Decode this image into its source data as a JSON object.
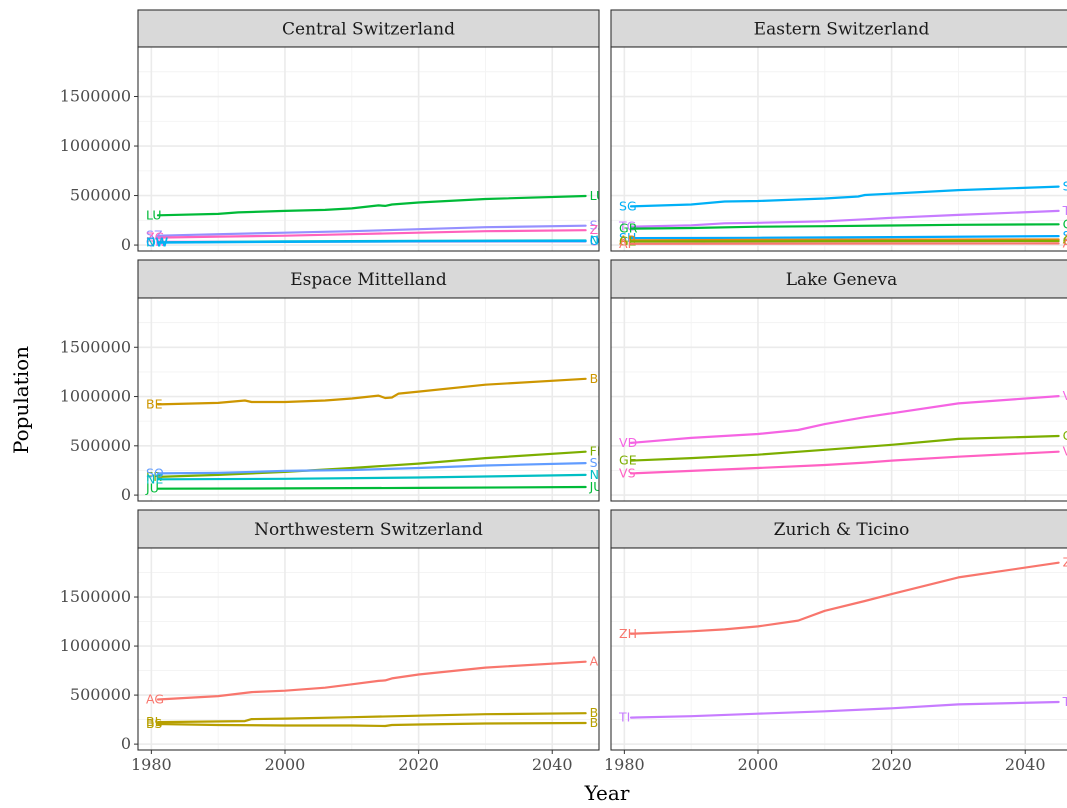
{
  "chart_data": {
    "type": "line",
    "xlabel": "Year",
    "ylabel": "Population",
    "xlim": [
      1978,
      2047
    ],
    "ylim": [
      -60000,
      2000000
    ],
    "x_ticks": [
      1980,
      2000,
      2020,
      2040
    ],
    "y_ticks": [
      0,
      500000,
      1000000,
      1500000
    ],
    "y_tick_labels": [
      "0",
      "500000",
      "1000000",
      "1500000"
    ],
    "grid": true,
    "layout": "facet grid 2 columns x 3 rows",
    "panels": [
      {
        "title": "Central Switzerland",
        "series": [
          {
            "name": "LU",
            "color": "#00BA38",
            "x": [
              1981,
              1990,
              1993,
              2000,
              2006,
              2010,
              2014,
              2015,
              2016,
              2020,
              2030,
              2045
            ],
            "values": [
              300000,
              315000,
              330000,
              345000,
              355000,
              370000,
              400000,
              395000,
              410000,
              430000,
              465000,
              495000
            ]
          },
          {
            "name": "SZ",
            "color": "#9590FF",
            "x": [
              1981,
              1990,
              2000,
              2010,
              2020,
              2030,
              2045
            ],
            "values": [
              95000,
              110000,
              125000,
              140000,
              160000,
              180000,
              195000
            ]
          },
          {
            "name": "ZG",
            "color": "#FF62BC",
            "x": [
              1981,
              1990,
              2000,
              2010,
              2020,
              2030,
              2045
            ],
            "values": [
              75000,
              85000,
              95000,
              110000,
              125000,
              140000,
              150000
            ]
          },
          {
            "name": "UR",
            "color": "#F763E0",
            "x": [
              1981,
              2000,
              2020,
              2045
            ],
            "values": [
              33000,
              34000,
              36000,
              37000
            ]
          },
          {
            "name": "NW",
            "color": "#00BFC4",
            "x": [
              1981,
              2000,
              2020,
              2045
            ],
            "values": [
              28000,
              37000,
              43000,
              46000
            ]
          },
          {
            "name": "OW",
            "color": "#00B0F6",
            "x": [
              1981,
              2000,
              2020,
              2045
            ],
            "values": [
              25000,
              32000,
              38000,
              40000
            ]
          }
        ]
      },
      {
        "title": "Eastern Switzerland",
        "series": [
          {
            "name": "SG",
            "color": "#00B0F6",
            "x": [
              1981,
              1990,
              1995,
              2000,
              2006,
              2010,
              2015,
              2016,
              2020,
              2030,
              2045
            ],
            "values": [
              390000,
              410000,
              440000,
              445000,
              460000,
              470000,
              490000,
              505000,
              520000,
              555000,
              590000
            ]
          },
          {
            "name": "TG",
            "color": "#C77CFF",
            "x": [
              1981,
              1990,
              1995,
              2000,
              2010,
              2016,
              2020,
              2030,
              2045
            ],
            "values": [
              185000,
              200000,
              220000,
              225000,
              240000,
              260000,
              275000,
              305000,
              345000
            ]
          },
          {
            "name": "GR",
            "color": "#00BA38",
            "x": [
              1981,
              1990,
              2000,
              2010,
              2020,
              2030,
              2045
            ],
            "values": [
              165000,
              172000,
              185000,
              190000,
              198000,
              205000,
              210000
            ]
          },
          {
            "name": "SH",
            "color": "#00A9FF",
            "x": [
              1981,
              2000,
              2020,
              2045
            ],
            "values": [
              70000,
              73000,
              80000,
              90000
            ]
          },
          {
            "name": "AR",
            "color": "#E68613",
            "x": [
              1981,
              2000,
              2020,
              2045
            ],
            "values": [
              47000,
              53000,
              55000,
              56000
            ]
          },
          {
            "name": "GL",
            "color": "#7CAE00",
            "x": [
              1981,
              2000,
              2020,
              2045
            ],
            "values": [
              36000,
              38000,
              40000,
              41000
            ]
          },
          {
            "name": "AI",
            "color": "#F8766D",
            "x": [
              1981,
              2000,
              2020,
              2045
            ],
            "values": [
              13000,
              15000,
              16000,
              17000
            ]
          }
        ]
      },
      {
        "title": "Espace Mittelland",
        "series": [
          {
            "name": "BE",
            "color": "#CD9600",
            "x": [
              1981,
              1990,
              1994,
              1995,
              2000,
              2006,
              2010,
              2014,
              2015,
              2016,
              2017,
              2020,
              2030,
              2045
            ],
            "values": [
              920000,
              935000,
              960000,
              945000,
              945000,
              960000,
              980000,
              1010000,
              985000,
              990000,
              1030000,
              1050000,
              1120000,
              1180000
            ]
          },
          {
            "name": "FR",
            "color": "#7CAE00",
            "x": [
              1981,
              1990,
              2000,
              2010,
              2020,
              2030,
              2045
            ],
            "values": [
              185000,
              205000,
              235000,
              275000,
              320000,
              375000,
              440000
            ]
          },
          {
            "name": "SO",
            "color": "#619CFF",
            "x": [
              1981,
              1990,
              2000,
              2010,
              2020,
              2030,
              2045
            ],
            "values": [
              220000,
              225000,
              245000,
              255000,
              275000,
              300000,
              325000
            ]
          },
          {
            "name": "NE",
            "color": "#00BFC4",
            "x": [
              1981,
              2000,
              2020,
              2045
            ],
            "values": [
              160000,
              165000,
              178000,
              205000
            ]
          },
          {
            "name": "JU",
            "color": "#00BA38",
            "x": [
              1981,
              2000,
              2020,
              2045
            ],
            "values": [
              65000,
              68000,
              73000,
              82000
            ]
          }
        ]
      },
      {
        "title": "Lake Geneva",
        "series": [
          {
            "name": "VD",
            "color": "#F564E3",
            "x": [
              1981,
              1990,
              2000,
              2006,
              2010,
              2016,
              2020,
              2030,
              2045
            ],
            "values": [
              530000,
              580000,
              620000,
              660000,
              720000,
              790000,
              830000,
              930000,
              1005000
            ]
          },
          {
            "name": "GE",
            "color": "#7CAE00",
            "x": [
              1981,
              1990,
              2000,
              2010,
              2020,
              2030,
              2045
            ],
            "values": [
              350000,
              375000,
              410000,
              460000,
              510000,
              570000,
              600000
            ]
          },
          {
            "name": "VS",
            "color": "#FF61C3",
            "x": [
              1981,
              1990,
              2000,
              2010,
              2016,
              2020,
              2030,
              2045
            ],
            "values": [
              220000,
              245000,
              275000,
              305000,
              330000,
              350000,
              390000,
              440000
            ]
          }
        ]
      },
      {
        "title": "Northwestern Switzerland",
        "series": [
          {
            "name": "AG",
            "color": "#F8766D",
            "x": [
              1981,
              1990,
              1995,
              2000,
              2006,
              2010,
              2014,
              2015,
              2016,
              2020,
              2030,
              2045
            ],
            "values": [
              455000,
              490000,
              530000,
              545000,
              575000,
              610000,
              645000,
              650000,
              670000,
              710000,
              780000,
              840000
            ]
          },
          {
            "name": "BL",
            "color": "#B79F00",
            "x": [
              1981,
              1994,
              1995,
              2000,
              2010,
              2020,
              2030,
              2045
            ],
            "values": [
              225000,
              235000,
              255000,
              260000,
              275000,
              290000,
              305000,
              315000
            ]
          },
          {
            "name": "BS",
            "color": "#B79F00",
            "x": [
              1981,
              1990,
              2000,
              2010,
              2015,
              2016,
              2020,
              2030,
              2045
            ],
            "values": [
              205000,
              195000,
              190000,
              190000,
              185000,
              195000,
              200000,
              210000,
              215000
            ]
          }
        ]
      },
      {
        "title": "Zurich & Ticino",
        "series": [
          {
            "name": "ZH",
            "color": "#F8766D",
            "x": [
              1981,
              1990,
              1995,
              2000,
              2006,
              2010,
              2016,
              2020,
              2030,
              2045
            ],
            "values": [
              1125000,
              1150000,
              1170000,
              1200000,
              1260000,
              1360000,
              1460000,
              1530000,
              1700000,
              1850000
            ]
          },
          {
            "name": "TI",
            "color": "#C77CFF",
            "x": [
              1981,
              1990,
              2000,
              2010,
              2020,
              2030,
              2045
            ],
            "values": [
              270000,
              285000,
              310000,
              335000,
              365000,
              405000,
              430000
            ]
          }
        ]
      }
    ]
  }
}
